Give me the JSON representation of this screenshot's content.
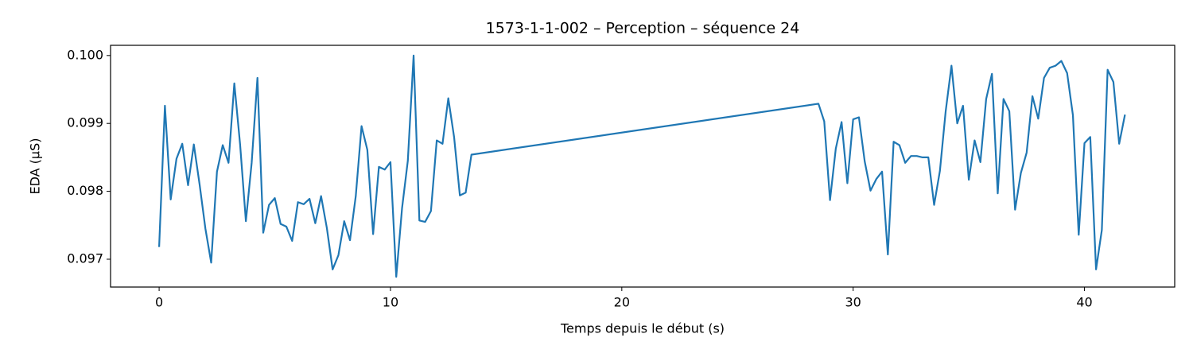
{
  "chart_data": {
    "type": "line",
    "title": "1573-1-1-002 – Perception – séquence 24",
    "x_label": "Temps depuis le début (s)",
    "y_label": "EDA (µS)",
    "color": "#1f77b4",
    "x": [
      0,
      0.25,
      0.5,
      0.75,
      1,
      1.25,
      1.5,
      1.75,
      2,
      2.25,
      2.5,
      2.75,
      3,
      3.25,
      3.5,
      3.75,
      4,
      4.25,
      4.5,
      4.75,
      5,
      5.25,
      5.5,
      5.75,
      6,
      6.25,
      6.5,
      6.75,
      7,
      7.25,
      7.5,
      7.75,
      8,
      8.25,
      8.5,
      8.75,
      9,
      9.25,
      9.5,
      9.75,
      10,
      10.25,
      10.5,
      10.75,
      11,
      11.25,
      11.5,
      11.75,
      12,
      12.25,
      12.5,
      12.75,
      13,
      13.25,
      13.5,
      28.5,
      28.75,
      29,
      29.25,
      29.5,
      29.75,
      30,
      30.25,
      30.5,
      30.75,
      31,
      31.25,
      31.5,
      31.75,
      32,
      32.25,
      32.5,
      32.75,
      33,
      33.25,
      33.5,
      33.75,
      34,
      34.25,
      34.5,
      34.75,
      35,
      35.25,
      35.5,
      35.75,
      36,
      36.25,
      36.5,
      36.75,
      37,
      37.25,
      37.5,
      37.75,
      38,
      38.25,
      38.5,
      38.75,
      39,
      39.25,
      39.5,
      39.75,
      40,
      40.25,
      40.5,
      40.75,
      41,
      41.25,
      41.5,
      41.75
    ],
    "values": [
      0.09718,
      0.09926,
      0.09788,
      0.09848,
      0.0987,
      0.09809,
      0.09869,
      0.0981,
      0.09745,
      0.09695,
      0.09829,
      0.09868,
      0.09842,
      0.09959,
      0.09869,
      0.09756,
      0.09842,
      0.09967,
      0.09739,
      0.0978,
      0.0979,
      0.09752,
      0.09748,
      0.09727,
      0.09784,
      0.09781,
      0.09789,
      0.09753,
      0.09793,
      0.09746,
      0.09685,
      0.09706,
      0.09756,
      0.09728,
      0.09793,
      0.09896,
      0.09861,
      0.09737,
      0.09836,
      0.09832,
      0.09843,
      0.09674,
      0.09775,
      0.09845,
      0.1,
      0.09757,
      0.09755,
      0.09771,
      0.09875,
      0.0987,
      0.09937,
      0.0988,
      0.09794,
      0.09798,
      0.09854,
      0.09929,
      0.09903,
      0.09787,
      0.09863,
      0.09902,
      0.09812,
      0.09906,
      0.09909,
      0.09844,
      0.09801,
      0.09818,
      0.09829,
      0.09707,
      0.09873,
      0.09868,
      0.09842,
      0.09852,
      0.09852,
      0.0985,
      0.0985,
      0.0978,
      0.0983,
      0.09918,
      0.09985,
      0.099,
      0.09926,
      0.09817,
      0.09875,
      0.09843,
      0.09936,
      0.09973,
      0.09797,
      0.09936,
      0.09918,
      0.09773,
      0.09827,
      0.09857,
      0.0994,
      0.09907,
      0.09967,
      0.09982,
      0.09985,
      0.09992,
      0.09974,
      0.09912,
      0.09736,
      0.09871,
      0.0988,
      0.09685,
      0.09743,
      0.09979,
      0.09961,
      0.0987,
      0.09913
    ],
    "xlim": [
      -2.1,
      43.9
    ],
    "ylim": [
      0.09659,
      0.10015
    ],
    "xticks": [
      0,
      10,
      20,
      30,
      40
    ],
    "yticks": [
      0.097,
      0.098,
      0.099,
      {
        "value": 0.1,
        "label": "0.100"
      }
    ],
    "grid": false
  }
}
